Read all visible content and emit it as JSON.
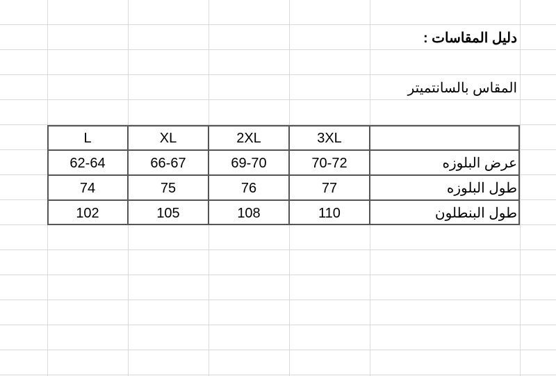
{
  "sheet": {
    "title": "دليل المقاسات :",
    "subtitle": "المقاس بالسانتميتر",
    "table": {
      "headers": [
        "",
        "3XL",
        "2XL",
        "XL",
        "L"
      ],
      "rows": [
        {
          "label": "عرض البلوزه",
          "values": [
            "70-72",
            "69-70",
            "66-67",
            "62-64"
          ]
        },
        {
          "label": "طول البلوزه",
          "values": [
            "77",
            "76",
            "75",
            "74"
          ]
        },
        {
          "label": "طول البنطلون",
          "values": [
            "110",
            "108",
            "105",
            "102"
          ]
        }
      ]
    }
  }
}
